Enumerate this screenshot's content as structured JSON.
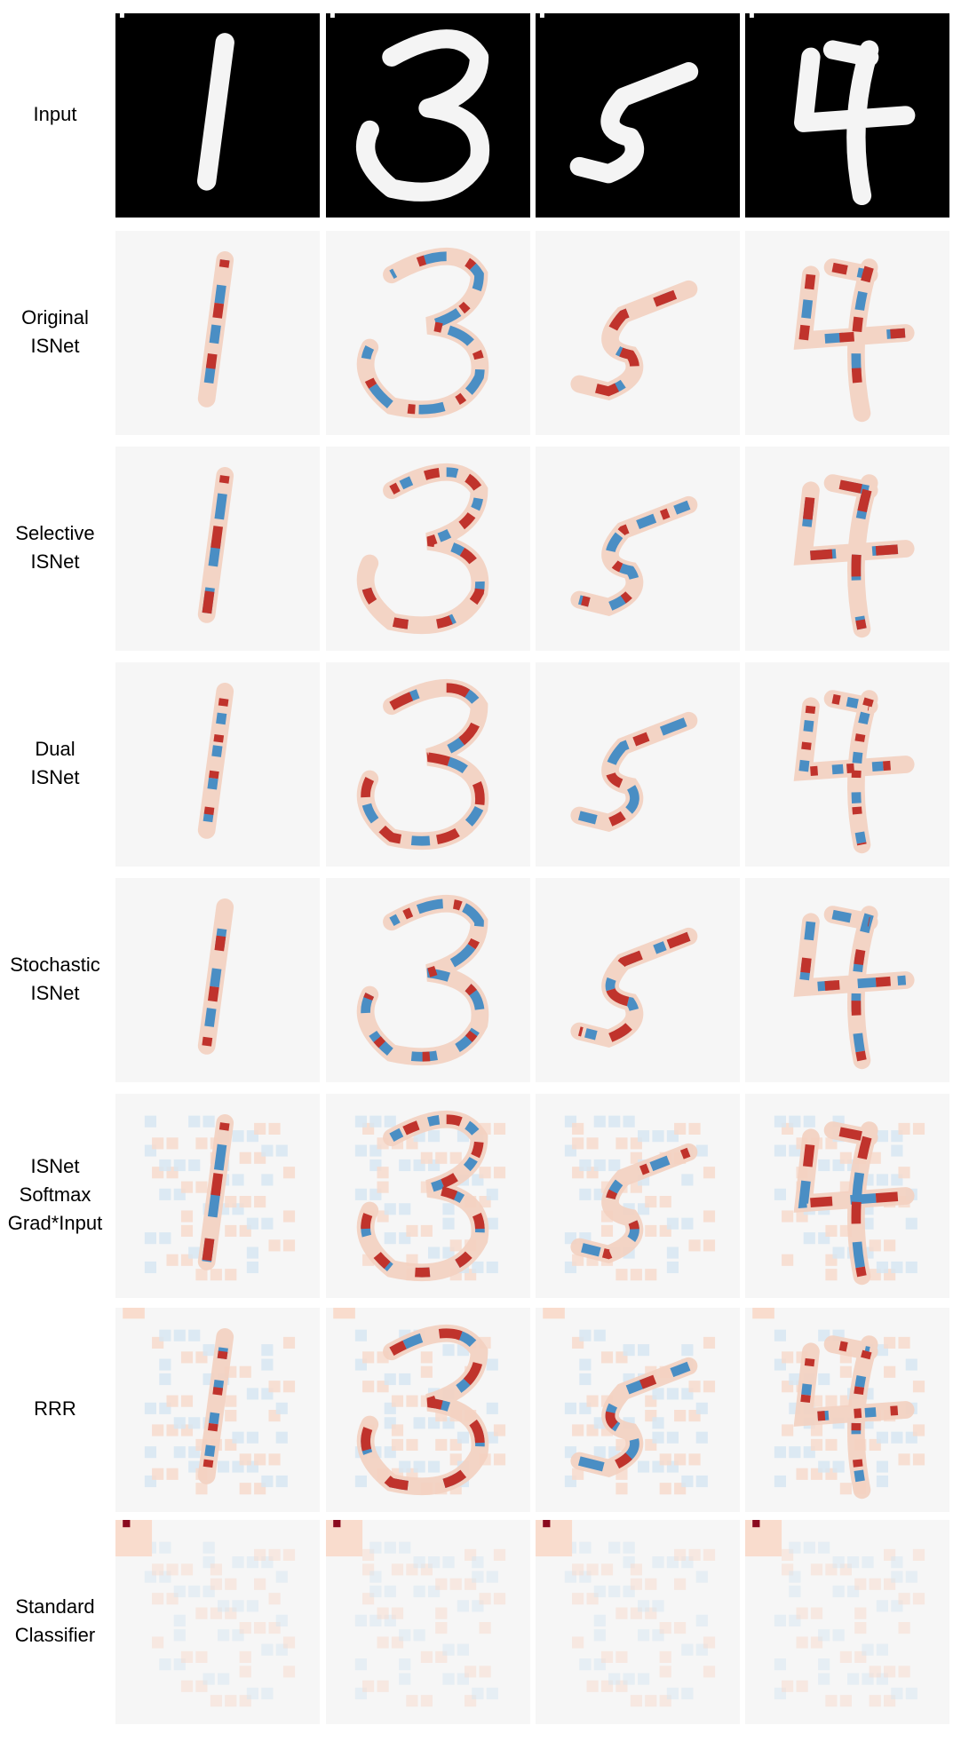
{
  "rows": [
    {
      "label_lines": [
        "Input"
      ]
    },
    {
      "label_lines": [
        "Original",
        "ISNet"
      ]
    },
    {
      "label_lines": [
        "Selective",
        "ISNet"
      ]
    },
    {
      "label_lines": [
        "Dual",
        "ISNet"
      ]
    },
    {
      "label_lines": [
        "Stochastic",
        "ISNet"
      ]
    },
    {
      "label_lines": [
        "ISNet",
        "Softmax",
        "Grad*Input"
      ]
    },
    {
      "label_lines": [
        "RRR"
      ]
    },
    {
      "label_lines": [
        "Standard",
        "Classifier"
      ]
    }
  ]
}
